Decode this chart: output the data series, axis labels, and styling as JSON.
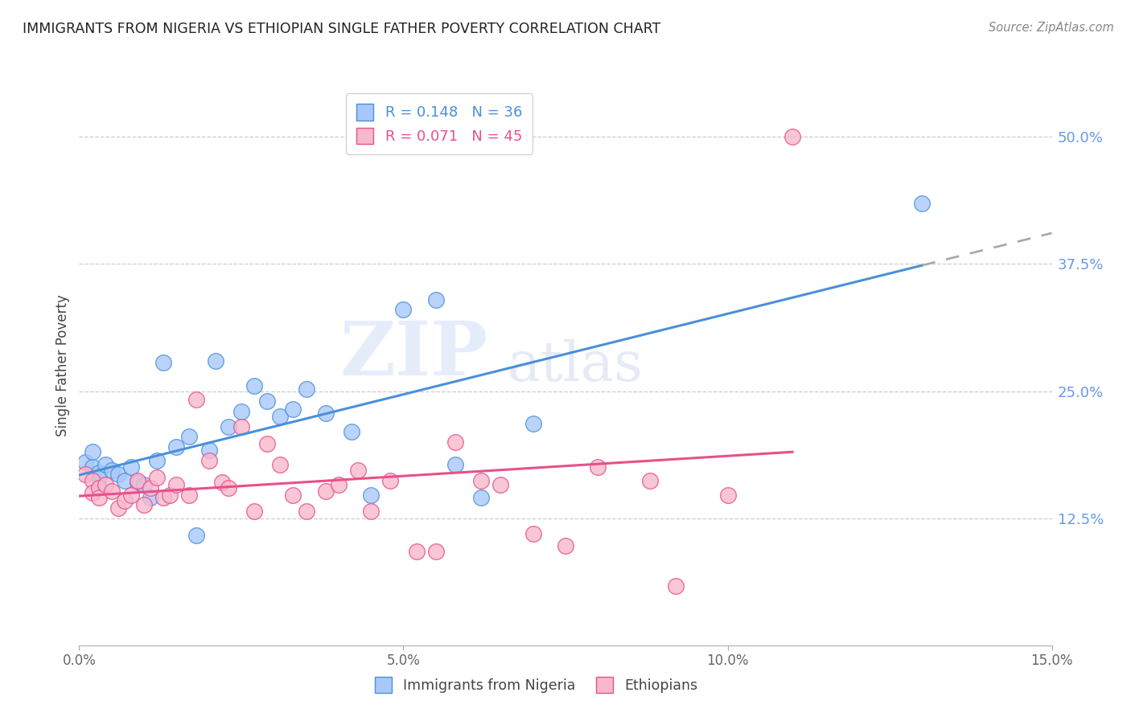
{
  "title": "IMMIGRANTS FROM NIGERIA VS ETHIOPIAN SINGLE FATHER POVERTY CORRELATION CHART",
  "source": "Source: ZipAtlas.com",
  "ylabel": "Single Father Poverty",
  "xlim": [
    0.0,
    0.15
  ],
  "ylim": [
    0.0,
    0.55
  ],
  "yticks": [
    0.125,
    0.25,
    0.375,
    0.5
  ],
  "ytick_labels": [
    "12.5%",
    "25.0%",
    "37.5%",
    "50.0%"
  ],
  "xticks": [
    0.0,
    0.05,
    0.1,
    0.15
  ],
  "xtick_labels": [
    "0.0%",
    "5.0%",
    "10.0%",
    "15.0%"
  ],
  "nigeria_R": 0.148,
  "nigeria_N": 36,
  "ethiopia_R": 0.071,
  "ethiopia_N": 45,
  "nigeria_color": "#a8c8fa",
  "ethiopia_color": "#f8b8cc",
  "nigeria_line_color": "#4a90d9",
  "ethiopia_line_color": "#e8508a",
  "trendline_extension_color": "#aaaaaa",
  "watermark_zip": "ZIP",
  "watermark_atlas": "atlas",
  "nigeria_x": [
    0.001,
    0.002,
    0.002,
    0.003,
    0.003,
    0.004,
    0.005,
    0.006,
    0.007,
    0.008,
    0.009,
    0.01,
    0.011,
    0.012,
    0.013,
    0.015,
    0.017,
    0.018,
    0.02,
    0.021,
    0.023,
    0.025,
    0.027,
    0.029,
    0.031,
    0.033,
    0.035,
    0.038,
    0.042,
    0.045,
    0.05,
    0.055,
    0.058,
    0.062,
    0.07,
    0.13
  ],
  "nigeria_y": [
    0.18,
    0.175,
    0.19,
    0.17,
    0.165,
    0.178,
    0.172,
    0.168,
    0.162,
    0.175,
    0.16,
    0.158,
    0.145,
    0.182,
    0.278,
    0.195,
    0.205,
    0.108,
    0.192,
    0.28,
    0.215,
    0.23,
    0.255,
    0.24,
    0.225,
    0.232,
    0.252,
    0.228,
    0.21,
    0.148,
    0.33,
    0.34,
    0.178,
    0.145,
    0.218,
    0.435
  ],
  "ethiopia_x": [
    0.001,
    0.002,
    0.002,
    0.003,
    0.003,
    0.004,
    0.005,
    0.006,
    0.007,
    0.008,
    0.009,
    0.01,
    0.011,
    0.012,
    0.013,
    0.014,
    0.015,
    0.017,
    0.018,
    0.02,
    0.022,
    0.023,
    0.025,
    0.027,
    0.029,
    0.031,
    0.033,
    0.035,
    0.038,
    0.04,
    0.043,
    0.045,
    0.048,
    0.052,
    0.055,
    0.058,
    0.062,
    0.065,
    0.07,
    0.075,
    0.08,
    0.088,
    0.092,
    0.1,
    0.11
  ],
  "ethiopia_y": [
    0.168,
    0.162,
    0.15,
    0.155,
    0.145,
    0.158,
    0.152,
    0.135,
    0.142,
    0.148,
    0.162,
    0.138,
    0.155,
    0.165,
    0.145,
    0.148,
    0.158,
    0.148,
    0.242,
    0.182,
    0.16,
    0.155,
    0.215,
    0.132,
    0.198,
    0.178,
    0.148,
    0.132,
    0.152,
    0.158,
    0.172,
    0.132,
    0.162,
    0.092,
    0.092,
    0.2,
    0.162,
    0.158,
    0.11,
    0.098,
    0.175,
    0.162,
    0.058,
    0.148,
    0.5
  ]
}
